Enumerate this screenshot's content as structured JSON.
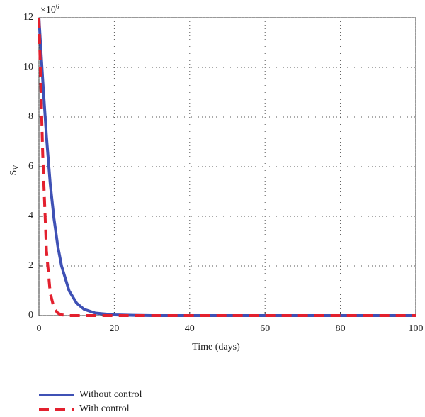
{
  "chart_data": {
    "type": "line",
    "xlabel": "Time (days)",
    "ylabel": "S",
    "ylabel_sub": "V",
    "y_multiplier": "×10",
    "y_multiplier_exp": "6",
    "x": [
      0,
      1,
      2,
      3,
      4,
      5,
      6,
      8,
      10,
      12,
      15,
      20,
      25,
      30,
      40,
      50,
      60,
      70,
      80,
      90,
      100
    ],
    "series": [
      {
        "name": "Without control",
        "color": "#3f51b5",
        "dash": false,
        "values": [
          12,
          9.5,
          7.2,
          5.3,
          3.9,
          2.8,
          2.0,
          1.0,
          0.5,
          0.25,
          0.1,
          0.03,
          0.01,
          0,
          0,
          0,
          0,
          0,
          0,
          0,
          0
        ]
      },
      {
        "name": "With control",
        "color": "#e3202e",
        "dash": true,
        "values": [
          12,
          6.5,
          2.6,
          0.9,
          0.3,
          0.1,
          0.03,
          0,
          0,
          0,
          0,
          0,
          0,
          0,
          0,
          0,
          0,
          0,
          0,
          0,
          0
        ]
      }
    ],
    "xlim": [
      0,
      100
    ],
    "xticks": [
      0,
      20,
      40,
      60,
      80,
      100
    ],
    "ylim": [
      0,
      12
    ],
    "yticks": [
      0,
      2,
      4,
      6,
      8,
      10,
      12
    ],
    "grid": true
  }
}
